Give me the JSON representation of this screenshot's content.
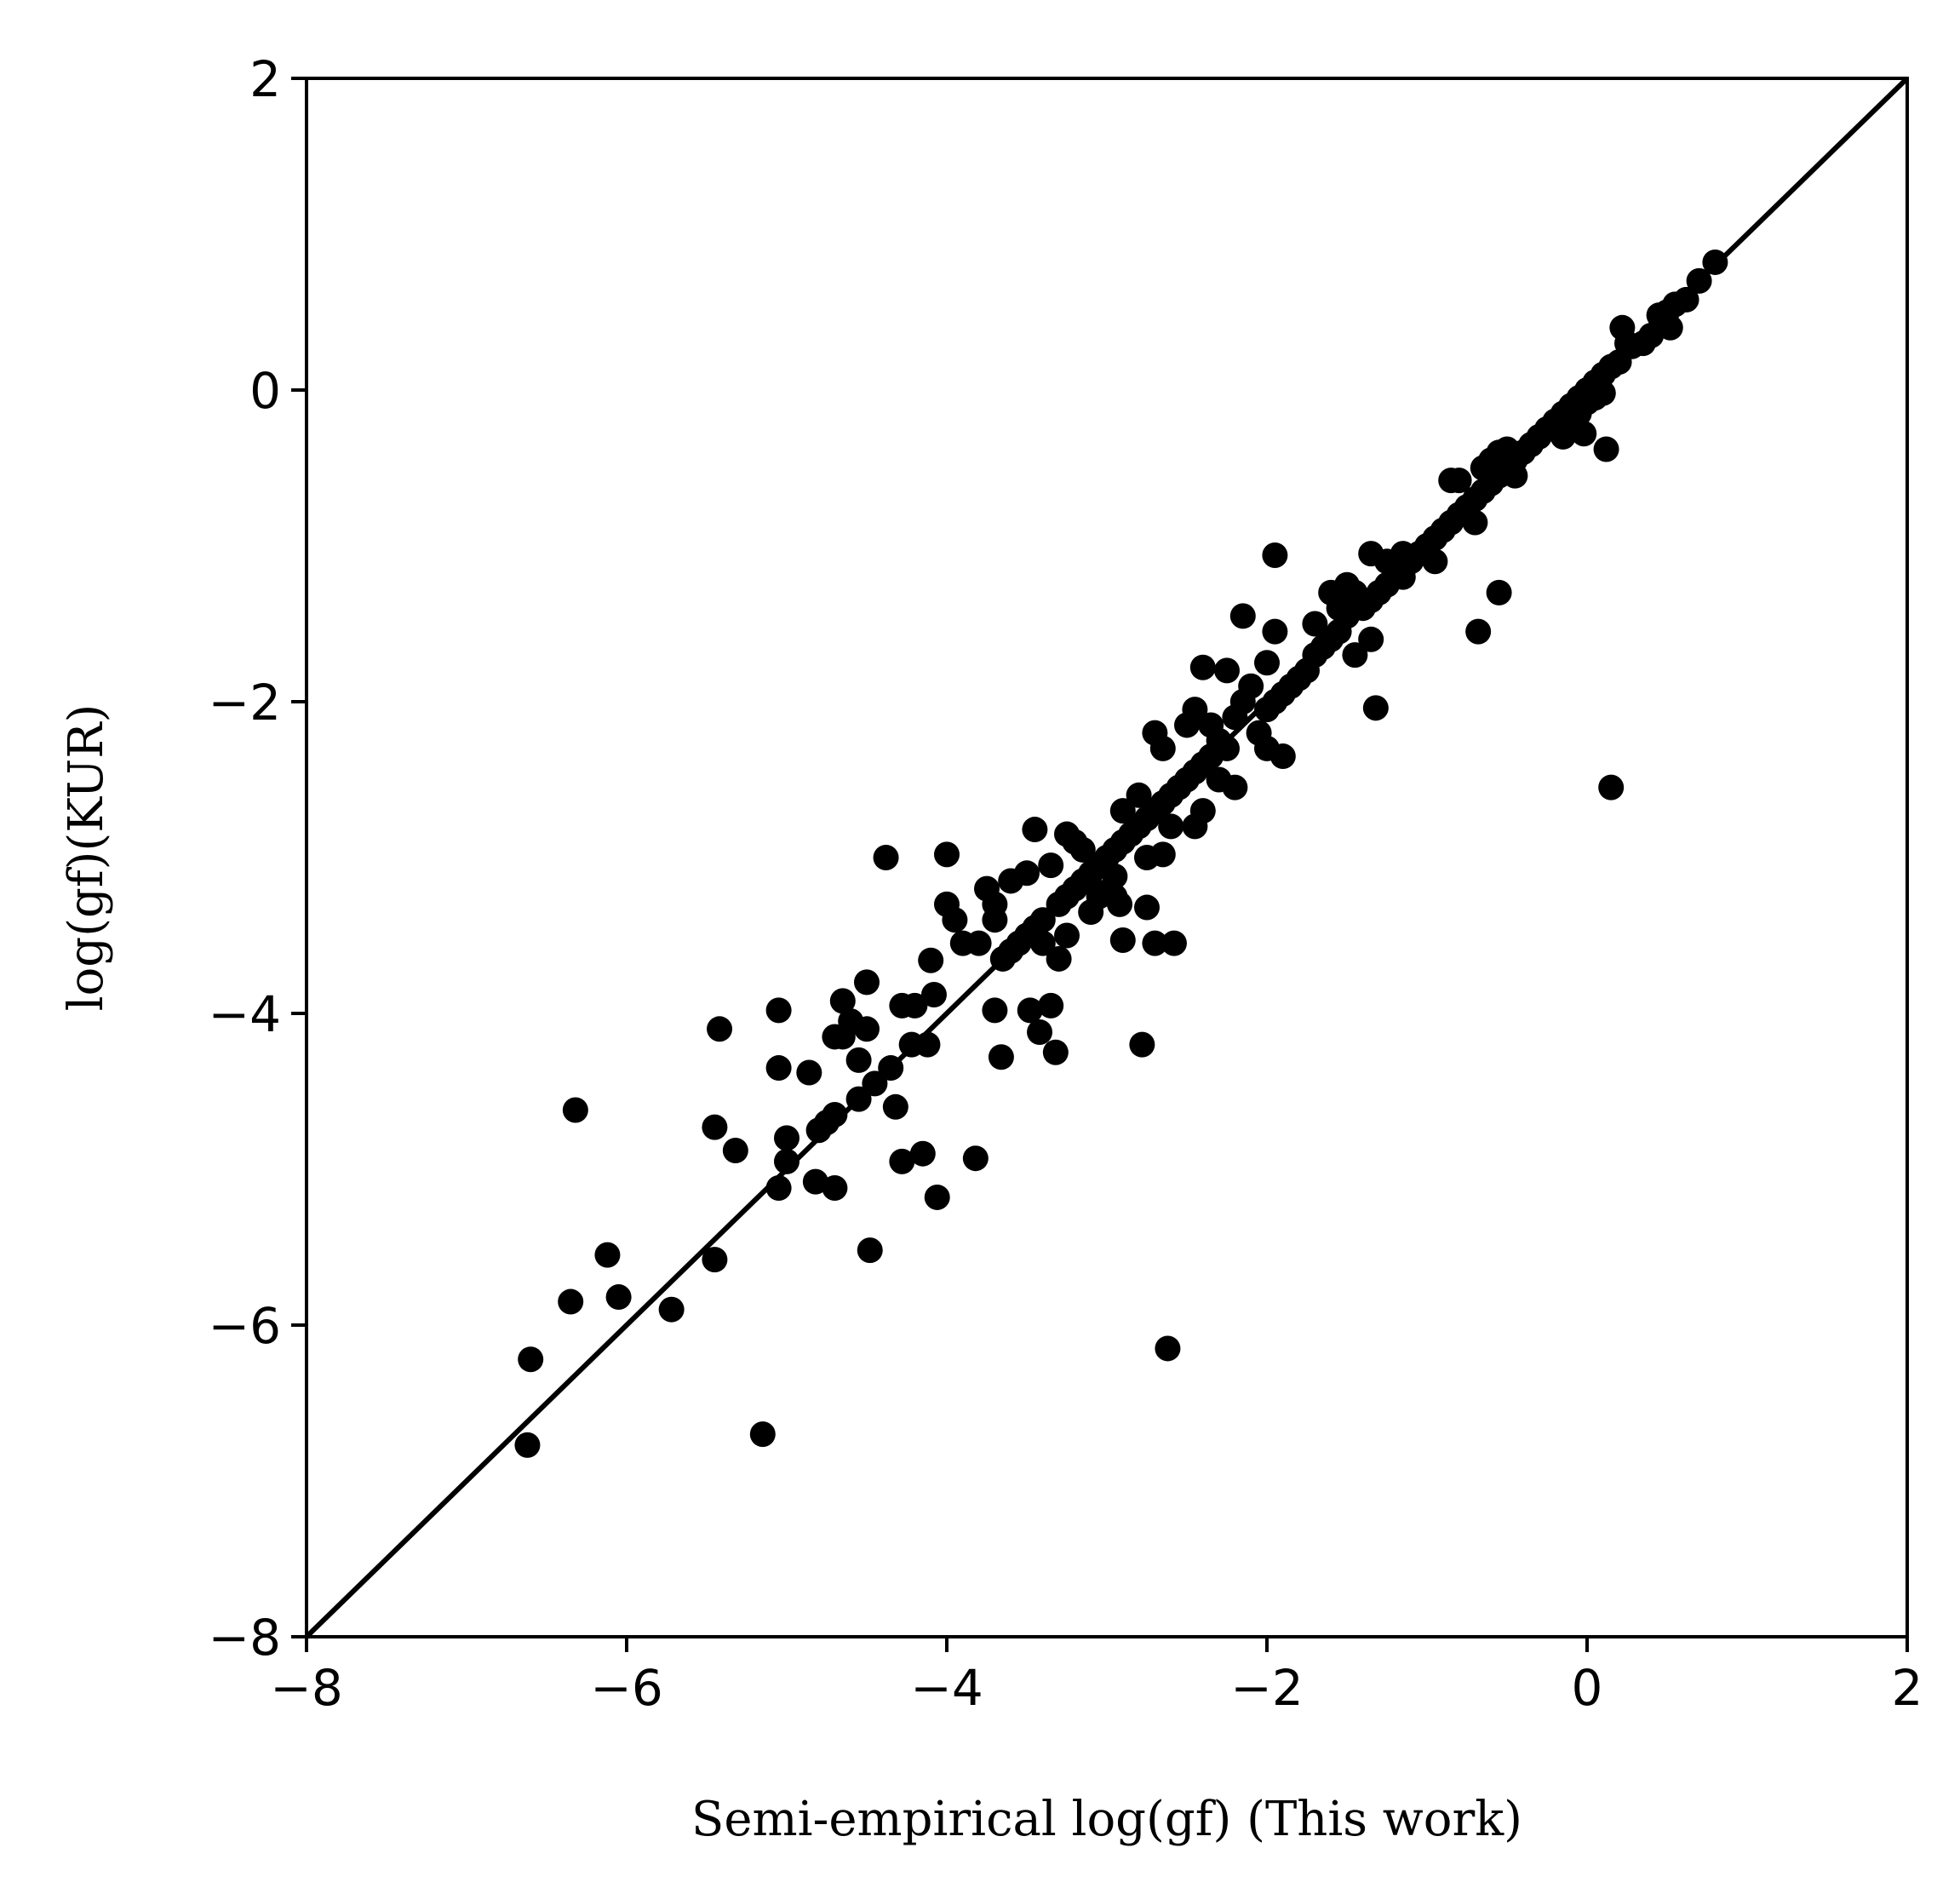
{
  "chart_data": {
    "type": "scatter",
    "xlabel": "Semi-empirical log(gf) (This work)",
    "ylabel": "log(gf)(KUR)",
    "xlim": [
      -8,
      2
    ],
    "ylim": [
      -8,
      2
    ],
    "xticks": [
      "−8",
      "−6",
      "−4",
      "−2",
      "0",
      "2"
    ],
    "yticks": [
      "−8",
      "−6",
      "−4",
      "−2",
      "0",
      "2"
    ],
    "xtick_values": [
      -8,
      -6,
      -4,
      -2,
      0,
      2
    ],
    "ytick_values": [
      -8,
      -6,
      -4,
      -2,
      0,
      2
    ],
    "grid": false,
    "reference_line": {
      "from": [
        -8,
        -8
      ],
      "to": [
        2,
        2
      ]
    },
    "point_color": "#000000",
    "line_color": "#000000",
    "points": [
      [
        0.8,
        0.82
      ],
      [
        0.7,
        0.7
      ],
      [
        0.62,
        0.58
      ],
      [
        0.55,
        0.55
      ],
      [
        0.5,
        0.5
      ],
      [
        0.45,
        0.48
      ],
      [
        0.4,
        0.35
      ],
      [
        0.52,
        0.4
      ],
      [
        0.35,
        0.3
      ],
      [
        0.28,
        0.28
      ],
      [
        0.25,
        0.3
      ],
      [
        0.22,
        0.4
      ],
      [
        0.2,
        0.18
      ],
      [
        0.15,
        0.15
      ],
      [
        0.1,
        0.1
      ],
      [
        0.05,
        0.05
      ],
      [
        0.0,
        0.0
      ],
      [
        -0.05,
        -0.05
      ],
      [
        -0.1,
        -0.1
      ],
      [
        -0.15,
        -0.15
      ],
      [
        -0.2,
        -0.2
      ],
      [
        -0.25,
        -0.25
      ],
      [
        -0.3,
        -0.3
      ],
      [
        0.1,
        -0.02
      ],
      [
        0.05,
        -0.05
      ],
      [
        0.0,
        -0.08
      ],
      [
        -0.05,
        -0.15
      ],
      [
        -0.1,
        -0.25
      ],
      [
        0.12,
        -0.38
      ],
      [
        -0.02,
        -0.28
      ],
      [
        -0.15,
        -0.3
      ],
      [
        -0.35,
        -0.35
      ],
      [
        -0.4,
        -0.4
      ],
      [
        -0.45,
        -0.45
      ],
      [
        -0.5,
        -0.5
      ],
      [
        -0.55,
        -0.55
      ],
      [
        -0.6,
        -0.6
      ],
      [
        -0.5,
        -0.38
      ],
      [
        -0.55,
        -0.4
      ],
      [
        -0.6,
        -0.45
      ],
      [
        -0.65,
        -0.5
      ],
      [
        -0.45,
        -0.55
      ],
      [
        -0.7,
        -0.7
      ],
      [
        -0.75,
        -0.75
      ],
      [
        -0.8,
        -0.8
      ],
      [
        -0.85,
        -0.85
      ],
      [
        -0.8,
        -0.58
      ],
      [
        -0.85,
        -0.58
      ],
      [
        -0.7,
        -0.85
      ],
      [
        -0.65,
        -0.65
      ],
      [
        -0.9,
        -0.9
      ],
      [
        -0.95,
        -0.95
      ],
      [
        -1.0,
        -1.0
      ],
      [
        -1.05,
        -1.05
      ],
      [
        -1.1,
        -1.1
      ],
      [
        -0.95,
        -1.1
      ],
      [
        -1.15,
        -1.05
      ],
      [
        -1.2,
        -1.2
      ],
      [
        -1.25,
        -1.25
      ],
      [
        -1.3,
        -1.3
      ],
      [
        -1.35,
        -1.35
      ],
      [
        -1.4,
        -1.4
      ],
      [
        -1.15,
        -1.2
      ],
      [
        -1.25,
        -1.1
      ],
      [
        -1.35,
        -1.05
      ],
      [
        -1.45,
        -1.3
      ],
      [
        -1.5,
        -1.45
      ],
      [
        -1.55,
        -1.55
      ],
      [
        -1.6,
        -1.6
      ],
      [
        -1.65,
        -1.65
      ],
      [
        -1.7,
        -1.7
      ],
      [
        -1.5,
        -1.25
      ],
      [
        -1.55,
        -1.4
      ],
      [
        -1.6,
        -1.3
      ],
      [
        -1.35,
        -1.6
      ],
      [
        -1.45,
        -1.7
      ],
      [
        -1.7,
        -1.5
      ],
      [
        -1.75,
        -1.8
      ],
      [
        -1.8,
        -1.85
      ],
      [
        -1.85,
        -1.9
      ],
      [
        -1.9,
        -1.95
      ],
      [
        -1.95,
        -2.0
      ],
      [
        -2.0,
        -2.05
      ],
      [
        -1.95,
        -1.06
      ],
      [
        -0.55,
        -1.3
      ],
      [
        -0.68,
        -1.55
      ],
      [
        0.15,
        -2.55
      ],
      [
        -1.32,
        -2.04
      ],
      [
        -1.95,
        -1.55
      ],
      [
        -2.0,
        -1.75
      ],
      [
        -2.1,
        -1.9
      ],
      [
        -2.15,
        -2.0
      ],
      [
        -2.2,
        -2.1
      ],
      [
        -2.15,
        -1.45
      ],
      [
        -2.25,
        -1.8
      ],
      [
        -2.4,
        -1.78
      ],
      [
        -2.05,
        -2.2
      ],
      [
        -2.0,
        -2.3
      ],
      [
        -1.9,
        -2.35
      ],
      [
        -2.25,
        -2.3
      ],
      [
        -2.3,
        -2.25
      ],
      [
        -2.35,
        -2.35
      ],
      [
        -2.4,
        -2.4
      ],
      [
        -2.45,
        -2.45
      ],
      [
        -2.5,
        -2.5
      ],
      [
        -2.55,
        -2.55
      ],
      [
        -2.6,
        -2.6
      ],
      [
        -2.45,
        -2.05
      ],
      [
        -2.5,
        -2.15
      ],
      [
        -2.35,
        -2.15
      ],
      [
        -2.7,
        -2.2
      ],
      [
        -2.65,
        -2.3
      ],
      [
        -2.3,
        -2.5
      ],
      [
        -2.2,
        -2.55
      ],
      [
        -2.4,
        -2.7
      ],
      [
        -2.45,
        -2.8
      ],
      [
        -2.65,
        -2.65
      ],
      [
        -2.7,
        -2.7
      ],
      [
        -2.75,
        -2.75
      ],
      [
        -2.8,
        -2.8
      ],
      [
        -2.85,
        -2.85
      ],
      [
        -2.9,
        -2.9
      ],
      [
        -2.95,
        -2.95
      ],
      [
        -3.0,
        -3.0
      ],
      [
        -2.8,
        -2.6
      ],
      [
        -2.9,
        -2.7
      ],
      [
        -2.6,
        -2.8
      ],
      [
        -2.65,
        -2.98
      ],
      [
        -2.75,
        -3.0
      ],
      [
        -3.05,
        -3.05
      ],
      [
        -3.1,
        -3.1
      ],
      [
        -3.15,
        -3.15
      ],
      [
        -3.2,
        -3.2
      ],
      [
        -3.25,
        -3.25
      ],
      [
        -3.3,
        -3.3
      ],
      [
        -3.2,
        -2.9
      ],
      [
        -3.15,
        -2.95
      ],
      [
        -3.05,
        -3.25
      ],
      [
        -2.95,
        -3.25
      ],
      [
        -3.25,
        -2.85
      ],
      [
        -3.45,
        -2.82
      ],
      [
        -3.35,
        -3.05
      ],
      [
        -3.4,
        -3.4
      ],
      [
        -3.45,
        -3.45
      ],
      [
        -3.5,
        -3.5
      ],
      [
        -3.55,
        -3.55
      ],
      [
        -3.6,
        -3.6
      ],
      [
        -3.65,
        -3.65
      ],
      [
        -3.5,
        -3.1
      ],
      [
        -3.6,
        -3.15
      ],
      [
        -3.75,
        -3.2
      ],
      [
        -3.7,
        -3.3
      ],
      [
        -3.4,
        -3.55
      ],
      [
        -3.3,
        -3.65
      ],
      [
        -3.25,
        -3.5
      ],
      [
        -3.7,
        -3.4
      ],
      [
        -3.8,
        -3.55
      ],
      [
        -3.9,
        -3.55
      ],
      [
        -3.95,
        -3.4
      ],
      [
        -4.0,
        -3.3
      ],
      [
        -4.0,
        -2.98
      ],
      [
        -4.38,
        -3.0
      ],
      [
        -3.48,
        -3.98
      ],
      [
        -3.35,
        -3.95
      ],
      [
        -3.42,
        -4.12
      ],
      [
        -3.32,
        -4.25
      ],
      [
        -3.7,
        -3.98
      ],
      [
        -3.66,
        -4.28
      ],
      [
        -3.82,
        -4.93
      ],
      [
        -4.1,
        -3.66
      ],
      [
        -4.08,
        -3.88
      ],
      [
        -4.2,
        -3.95
      ],
      [
        -4.28,
        -3.95
      ],
      [
        -4.22,
        -4.2
      ],
      [
        -4.12,
        -4.2
      ],
      [
        -4.35,
        -4.35
      ],
      [
        -4.45,
        -4.45
      ],
      [
        -4.55,
        -4.55
      ],
      [
        -4.5,
        -3.8
      ],
      [
        -4.6,
        -4.05
      ],
      [
        -4.65,
        -3.92
      ],
      [
        -4.65,
        -4.15
      ],
      [
        -4.7,
        -4.15
      ],
      [
        -4.55,
        -4.3
      ],
      [
        -4.5,
        -4.1
      ],
      [
        -4.7,
        -4.65
      ],
      [
        -4.75,
        -4.7
      ],
      [
        -4.8,
        -4.75
      ],
      [
        -4.32,
        -4.6
      ],
      [
        -4.28,
        -4.95
      ],
      [
        -4.15,
        -4.9
      ],
      [
        -4.06,
        -5.18
      ],
      [
        -4.48,
        -5.52
      ],
      [
        -4.7,
        -5.12
      ],
      [
        -4.82,
        -5.08
      ],
      [
        -4.86,
        -4.38
      ],
      [
        -5.05,
        -4.35
      ],
      [
        -5.05,
        -3.98
      ],
      [
        -5.0,
        -4.8
      ],
      [
        -5.0,
        -4.95
      ],
      [
        -5.05,
        -5.12
      ],
      [
        -5.15,
        -6.7
      ],
      [
        -5.32,
        -4.88
      ],
      [
        -5.45,
        -4.73
      ],
      [
        -5.42,
        -4.1
      ],
      [
        -5.45,
        -5.58
      ],
      [
        -5.72,
        -5.9
      ],
      [
        -6.05,
        -5.82
      ],
      [
        -6.12,
        -5.55
      ],
      [
        -6.32,
        -4.62
      ],
      [
        -6.35,
        -5.85
      ],
      [
        -6.6,
        -6.22
      ],
      [
        -6.62,
        -6.77
      ],
      [
        -2.62,
        -6.15
      ],
      [
        -2.78,
        -4.2
      ],
      [
        -2.75,
        -3.32
      ],
      [
        -2.7,
        -3.55
      ],
      [
        -2.58,
        -3.55
      ],
      [
        -2.9,
        -3.53
      ],
      [
        -2.95,
        -3.12
      ],
      [
        -2.92,
        -3.3
      ],
      [
        -3.0,
        -3.22
      ],
      [
        -3.1,
        -3.35
      ]
    ]
  }
}
